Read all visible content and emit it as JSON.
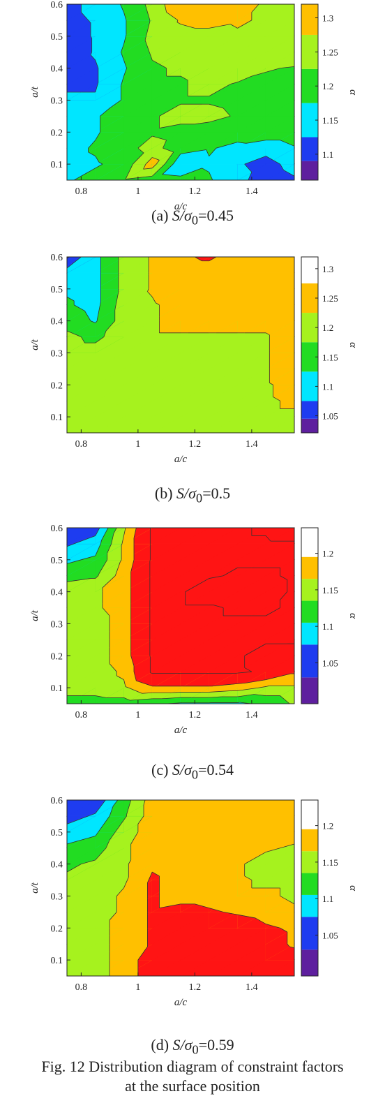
{
  "figure_caption": {
    "line1": "Fig. 12 Distribution diagram of constraint factors",
    "line2": "at the surface position"
  },
  "chart_data": [
    {
      "type": "heatmap",
      "panel": "(a)",
      "caption_prefix": "(a) ",
      "caption_symbol": "S/σ",
      "caption_sub": "0",
      "caption_value": "=0.45",
      "xlabel": "a/c",
      "ylabel": "a/t",
      "colorbar_label": "α",
      "x_ticks": [
        "0.8",
        "1",
        "1.2",
        "1.4"
      ],
      "y_ticks": [
        "0.1",
        "0.2",
        "0.3",
        "0.4",
        "0.5",
        "0.6"
      ],
      "colorbar_ticks": [
        "1.1",
        "1.15",
        "1.2",
        "1.25",
        "1.3"
      ],
      "xlim": [
        0.75,
        1.55
      ],
      "ylim": [
        0.05,
        0.6
      ],
      "x": [
        0.75,
        0.85,
        0.95,
        1.05,
        1.15,
        1.25,
        1.35,
        1.45,
        1.55
      ],
      "y": [
        0.05,
        0.1,
        0.15,
        0.2,
        0.25,
        0.3,
        0.35,
        0.4,
        0.45,
        0.5,
        0.55,
        0.6
      ],
      "levels": [
        1.09,
        1.125,
        1.175,
        1.225,
        1.275,
        1.32
      ],
      "colors": [
        "#5e1f9e",
        "#1e3cf0",
        "#00e6ff",
        "#22dc22",
        "#a6f21e",
        "#ffc000",
        "#ff1414"
      ],
      "z": [
        [
          1.17,
          1.19,
          1.22,
          1.2,
          1.19,
          1.18,
          1.14,
          1.1,
          1.12
        ],
        [
          1.16,
          1.17,
          1.19,
          1.3,
          1.13,
          1.17,
          1.13,
          1.11,
          1.14
        ],
        [
          1.16,
          1.18,
          1.21,
          1.24,
          1.2,
          1.18,
          1.16,
          1.14,
          1.17
        ],
        [
          1.16,
          1.17,
          1.2,
          1.22,
          1.21,
          1.2,
          1.2,
          1.21,
          1.21
        ],
        [
          1.16,
          1.17,
          1.2,
          1.22,
          1.24,
          1.24,
          1.22,
          1.21,
          1.2
        ],
        [
          1.13,
          1.13,
          1.18,
          1.22,
          1.22,
          1.22,
          1.21,
          1.21,
          1.21
        ],
        [
          1.12,
          1.12,
          1.18,
          1.22,
          1.22,
          1.24,
          1.22,
          1.21,
          1.21
        ],
        [
          1.1,
          1.12,
          1.17,
          1.22,
          1.23,
          1.24,
          1.26,
          1.23,
          1.22
        ],
        [
          1.09,
          1.13,
          1.18,
          1.23,
          1.24,
          1.26,
          1.26,
          1.27,
          1.27
        ],
        [
          1.1,
          1.13,
          1.17,
          1.24,
          1.26,
          1.26,
          1.27,
          1.27,
          1.27
        ],
        [
          1.11,
          1.13,
          1.17,
          1.23,
          1.28,
          1.29,
          1.28,
          1.27,
          1.27
        ],
        [
          1.11,
          1.14,
          1.18,
          1.24,
          1.32,
          1.32,
          1.29,
          1.27,
          1.27
        ]
      ]
    },
    {
      "type": "heatmap",
      "panel": "(b)",
      "caption_prefix": "(b) ",
      "caption_symbol": "S/σ",
      "caption_sub": "0",
      "caption_value": "=0.5",
      "xlabel": "a/c",
      "ylabel": "a/t",
      "colorbar_label": "α",
      "x_ticks": [
        "0.8",
        "1",
        "1.2",
        "1.4"
      ],
      "y_ticks": [
        "0.1",
        "0.2",
        "0.3",
        "0.4",
        "0.5",
        "0.6"
      ],
      "colorbar_ticks": [
        "1.05",
        "1.1",
        "1.15",
        "1.2",
        "1.25",
        "1.3"
      ],
      "xlim": [
        0.75,
        1.55
      ],
      "ylim": [
        0.05,
        0.6
      ],
      "x": [
        0.75,
        0.85,
        0.95,
        1.05,
        1.15,
        1.25,
        1.35,
        1.45,
        1.55
      ],
      "y": [
        0.05,
        0.1,
        0.15,
        0.2,
        0.25,
        0.3,
        0.35,
        0.4,
        0.45,
        0.5,
        0.55,
        0.6
      ],
      "levels": [
        1.045,
        1.075,
        1.125,
        1.175,
        1.225,
        1.275,
        1.32
      ],
      "colors": [
        "#5e1f9e",
        "#1e3cf0",
        "#00e6ff",
        "#22dc22",
        "#a6f21e",
        "#ffc000",
        "#ff1414"
      ],
      "z": [
        [
          1.2,
          1.2,
          1.21,
          1.21,
          1.22,
          1.22,
          1.22,
          1.22,
          1.22
        ],
        [
          1.2,
          1.2,
          1.21,
          1.21,
          1.22,
          1.22,
          1.22,
          1.22,
          1.22
        ],
        [
          1.2,
          1.2,
          1.21,
          1.21,
          1.22,
          1.22,
          1.22,
          1.22,
          1.23
        ],
        [
          1.2,
          1.2,
          1.21,
          1.21,
          1.22,
          1.22,
          1.22,
          1.22,
          1.24
        ],
        [
          1.2,
          1.2,
          1.21,
          1.22,
          1.22,
          1.22,
          1.22,
          1.22,
          1.26
        ],
        [
          1.2,
          1.2,
          1.21,
          1.22,
          1.22,
          1.22,
          1.22,
          1.22,
          1.26
        ],
        [
          1.19,
          1.16,
          1.21,
          1.22,
          1.22,
          1.22,
          1.22,
          1.22,
          1.26
        ],
        [
          1.15,
          1.12,
          1.2,
          1.22,
          1.24,
          1.24,
          1.24,
          1.24,
          1.26
        ],
        [
          1.13,
          1.11,
          1.2,
          1.22,
          1.24,
          1.26,
          1.26,
          1.26,
          1.26
        ],
        [
          1.12,
          1.11,
          1.19,
          1.23,
          1.26,
          1.26,
          1.26,
          1.26,
          1.26
        ],
        [
          1.09,
          1.11,
          1.19,
          1.23,
          1.26,
          1.26,
          1.26,
          1.26,
          1.26
        ],
        [
          1.04,
          1.11,
          1.19,
          1.23,
          1.27,
          1.28,
          1.26,
          1.26,
          1.26
        ]
      ]
    },
    {
      "type": "heatmap",
      "panel": "(c)",
      "caption_prefix": "(c) ",
      "caption_symbol": "S/σ",
      "caption_sub": "0",
      "caption_value": "=0.54",
      "xlabel": "a/c",
      "ylabel": "a/t",
      "colorbar_label": "α",
      "x_ticks": [
        "0.8",
        "1",
        "1.2",
        "1.4"
      ],
      "y_ticks": [
        "0.1",
        "0.2",
        "0.3",
        "0.4",
        "0.5",
        "0.6"
      ],
      "colorbar_ticks": [
        "1.05",
        "1.1",
        "1.15",
        "1.2"
      ],
      "xlim": [
        0.75,
        1.55
      ],
      "ylim": [
        0.05,
        0.6
      ],
      "x": [
        0.75,
        0.85,
        0.95,
        1.05,
        1.15,
        1.25,
        1.35,
        1.45,
        1.55
      ],
      "y": [
        0.05,
        0.1,
        0.15,
        0.2,
        0.25,
        0.3,
        0.35,
        0.4,
        0.45,
        0.5,
        0.55,
        0.6
      ],
      "levels": [
        1.03,
        1.075,
        1.105,
        1.135,
        1.165,
        1.195,
        1.235
      ],
      "colors": [
        "#5e1f9e",
        "#1e3cf0",
        "#00e6ff",
        "#22dc22",
        "#a6f21e",
        "#ffc000",
        "#ff1414"
      ],
      "z": [
        [
          1.12,
          1.12,
          1.12,
          1.11,
          1.1,
          1.1,
          1.1,
          1.11,
          1.14
        ],
        [
          1.15,
          1.15,
          1.16,
          1.19,
          1.19,
          1.19,
          1.18,
          1.16,
          1.16
        ],
        [
          1.15,
          1.15,
          1.17,
          1.24,
          1.24,
          1.24,
          1.24,
          1.23,
          1.2
        ],
        [
          1.15,
          1.15,
          1.18,
          1.24,
          1.24,
          1.24,
          1.24,
          1.22,
          1.22
        ],
        [
          1.15,
          1.15,
          1.18,
          1.24,
          1.24,
          1.24,
          1.24,
          1.24,
          1.24
        ],
        [
          1.15,
          1.15,
          1.18,
          1.24,
          1.24,
          1.24,
          1.24,
          1.24,
          1.24
        ],
        [
          1.16,
          1.16,
          1.18,
          1.24,
          1.24,
          1.24,
          1.23,
          1.23,
          1.24
        ],
        [
          1.16,
          1.16,
          1.18,
          1.24,
          1.24,
          1.21,
          1.21,
          1.22,
          1.24
        ],
        [
          1.12,
          1.13,
          1.18,
          1.24,
          1.24,
          1.24,
          1.23,
          1.23,
          1.24
        ],
        [
          1.1,
          1.11,
          1.17,
          1.24,
          1.24,
          1.24,
          1.24,
          1.24,
          1.24
        ],
        [
          1.07,
          1.09,
          1.17,
          1.24,
          1.24,
          1.24,
          1.24,
          1.24,
          1.24
        ],
        [
          1.03,
          1.06,
          1.16,
          1.24,
          1.24,
          1.24,
          1.24,
          1.23,
          1.21
        ]
      ]
    },
    {
      "type": "heatmap",
      "panel": "(d)",
      "caption_prefix": "(d) ",
      "caption_symbol": "S/σ",
      "caption_sub": "0",
      "caption_value": "=0.59",
      "xlabel": "a/c",
      "ylabel": "a/t",
      "colorbar_label": "α",
      "x_ticks": [
        "0.8",
        "1",
        "1.2",
        "1.4"
      ],
      "y_ticks": [
        "0.1",
        "0.2",
        "0.3",
        "0.4",
        "0.5",
        "0.6"
      ],
      "colorbar_ticks": [
        "1.05",
        "1.1",
        "1.15",
        "1.2"
      ],
      "xlim": [
        0.75,
        1.55
      ],
      "ylim": [
        0.05,
        0.6
      ],
      "x": [
        0.75,
        0.85,
        0.95,
        1.05,
        1.15,
        1.25,
        1.35,
        1.45,
        1.55
      ],
      "y": [
        0.05,
        0.1,
        0.15,
        0.2,
        0.25,
        0.3,
        0.35,
        0.4,
        0.45,
        0.5,
        0.55,
        0.6
      ],
      "levels": [
        1.03,
        1.075,
        1.105,
        1.135,
        1.165,
        1.195,
        1.235
      ],
      "colors": [
        "#5e1f9e",
        "#1e3cf0",
        "#00e6ff",
        "#22dc22",
        "#a6f21e",
        "#ffc000",
        "#ff1414"
      ],
      "z": [
        [
          1.15,
          1.16,
          1.17,
          1.22,
          1.23,
          1.23,
          1.23,
          1.23,
          1.22
        ],
        [
          1.15,
          1.16,
          1.17,
          1.22,
          1.23,
          1.23,
          1.23,
          1.22,
          1.21
        ],
        [
          1.15,
          1.16,
          1.17,
          1.2,
          1.23,
          1.23,
          1.23,
          1.21,
          1.19
        ],
        [
          1.16,
          1.16,
          1.17,
          1.2,
          1.22,
          1.23,
          1.22,
          1.2,
          1.19
        ],
        [
          1.15,
          1.15,
          1.17,
          1.2,
          1.21,
          1.2,
          1.19,
          1.18,
          1.17
        ],
        [
          1.15,
          1.15,
          1.17,
          1.2,
          1.18,
          1.18,
          1.17,
          1.17,
          1.16
        ],
        [
          1.14,
          1.14,
          1.16,
          1.2,
          1.18,
          1.18,
          1.17,
          1.16,
          1.16
        ],
        [
          1.13,
          1.14,
          1.16,
          1.19,
          1.18,
          1.18,
          1.17,
          1.15,
          1.15
        ],
        [
          1.11,
          1.12,
          1.16,
          1.18,
          1.19,
          1.19,
          1.18,
          1.17,
          1.16
        ],
        [
          1.09,
          1.1,
          1.15,
          1.18,
          1.19,
          1.19,
          1.19,
          1.18,
          1.18
        ],
        [
          1.06,
          1.08,
          1.13,
          1.18,
          1.19,
          1.19,
          1.19,
          1.18,
          1.18
        ],
        [
          1.04,
          1.05,
          1.12,
          1.18,
          1.19,
          1.19,
          1.19,
          1.18,
          1.18
        ]
      ]
    }
  ]
}
